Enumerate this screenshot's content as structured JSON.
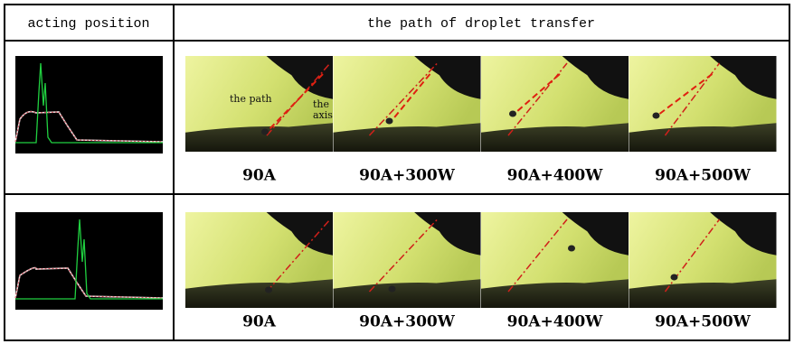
{
  "header": {
    "left": "acting position",
    "right": "the path of droplet transfer"
  },
  "rows": [
    {
      "labels": [
        "90A",
        "90A+300W",
        "90A+400W",
        "90A+500W"
      ]
    },
    {
      "labels": [
        "90A",
        "90A+300W",
        "90A+400W",
        "90A+500W"
      ]
    }
  ],
  "annotations": {
    "path": "the path",
    "axis": "the axis"
  }
}
